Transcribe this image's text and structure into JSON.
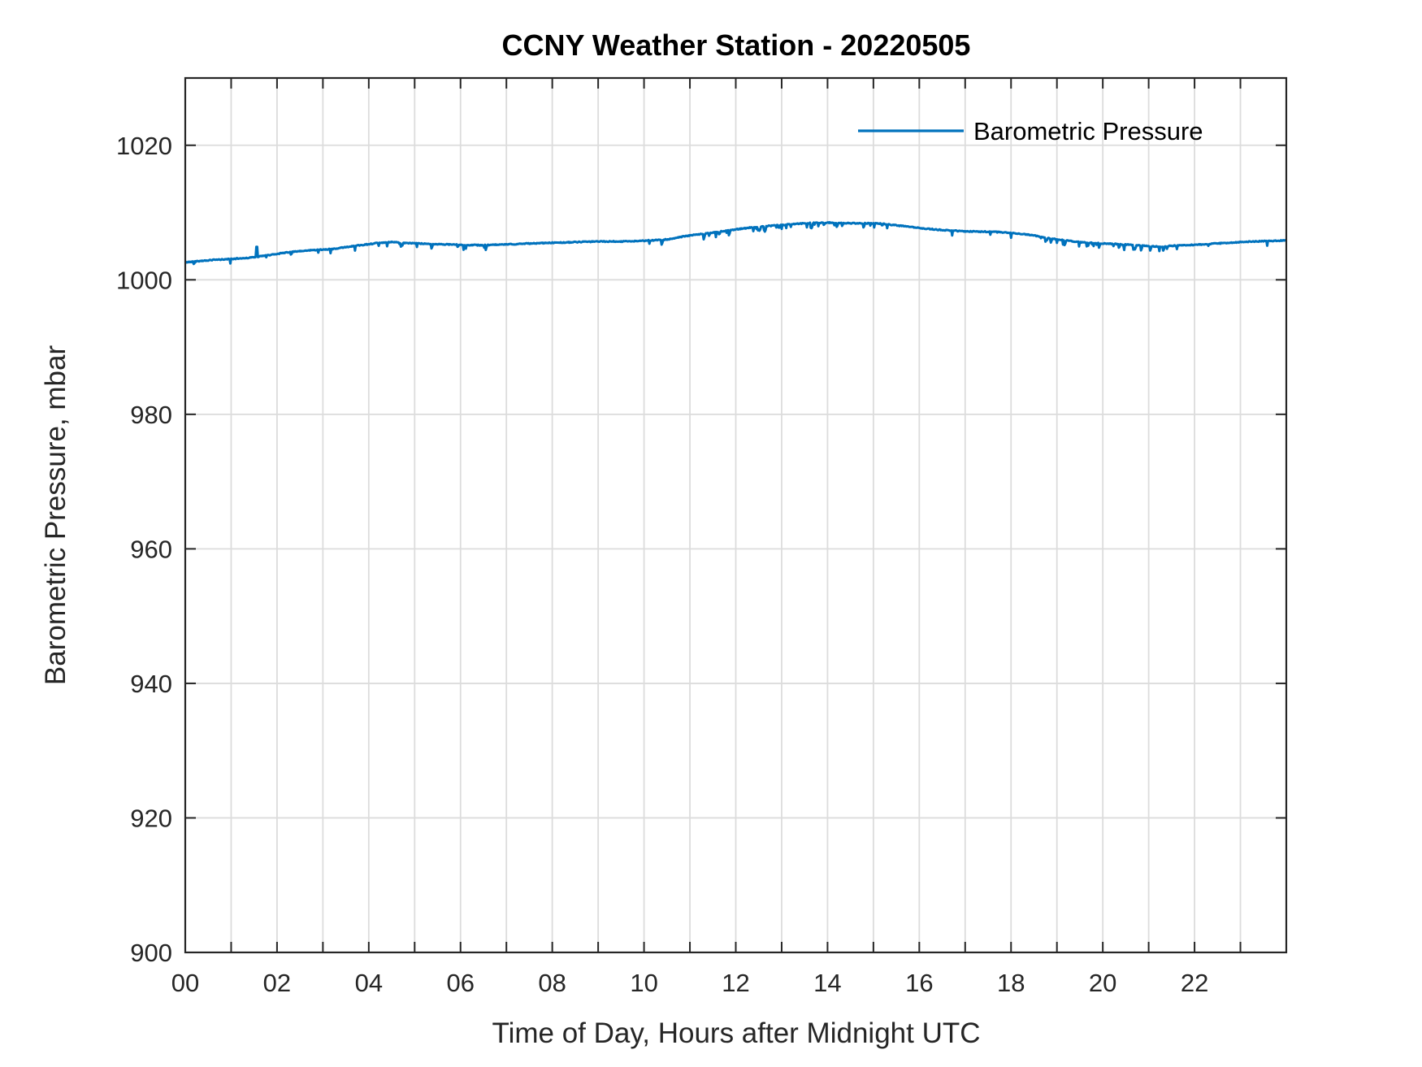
{
  "window": {
    "background": "#ffffff"
  },
  "chart_data": {
    "type": "line",
    "title": "CCNY Weather Station - 20220505",
    "xlabel": "Time of Day, Hours after Midnight UTC",
    "ylabel": "Barometric Pressure, mbar",
    "xlim": [
      0,
      24
    ],
    "ylim": [
      900,
      1030
    ],
    "x_minor_tick_step_hours": 1,
    "grid": {
      "vertical_every_hours": 1,
      "horizontal_every_mbar": 20,
      "color": "#dcdcdc",
      "on": true
    },
    "axis_color": "#262626",
    "xticks": [
      {
        "value": 0,
        "label": "00"
      },
      {
        "value": 2,
        "label": "02"
      },
      {
        "value": 4,
        "label": "04"
      },
      {
        "value": 6,
        "label": "06"
      },
      {
        "value": 8,
        "label": "08"
      },
      {
        "value": 10,
        "label": "10"
      },
      {
        "value": 12,
        "label": "12"
      },
      {
        "value": 14,
        "label": "14"
      },
      {
        "value": 16,
        "label": "16"
      },
      {
        "value": 18,
        "label": "18"
      },
      {
        "value": 20,
        "label": "20"
      },
      {
        "value": 22,
        "label": "22"
      }
    ],
    "yticks": [
      {
        "value": 900,
        "label": "900"
      },
      {
        "value": 920,
        "label": "920"
      },
      {
        "value": 940,
        "label": "940"
      },
      {
        "value": 960,
        "label": "960"
      },
      {
        "value": 980,
        "label": "980"
      },
      {
        "value": 1000,
        "label": "1000"
      },
      {
        "value": 1020,
        "label": "1020"
      }
    ],
    "legend": {
      "position": "top-right-inside",
      "border": "none",
      "entries": [
        {
          "label": "Barometric Pressure",
          "color": "#0072BD"
        }
      ]
    },
    "series": [
      {
        "name": "Barometric Pressure",
        "color": "#0072BD",
        "line_width": 3,
        "units": "mbar",
        "sample_interval_hours": 0.0166667,
        "points": [
          [
            0,
            1002.6
          ],
          [
            0.25,
            1002.75
          ],
          [
            0.5,
            1002.9
          ],
          [
            0.75,
            1003.0
          ],
          [
            1,
            1003.1
          ],
          [
            1.25,
            1003.2
          ],
          [
            1.5,
            1003.35
          ],
          [
            1.75,
            1003.6
          ],
          [
            2,
            1003.85
          ],
          [
            2.25,
            1004.1
          ],
          [
            2.5,
            1004.25
          ],
          [
            2.75,
            1004.4
          ],
          [
            3,
            1004.5
          ],
          [
            3.25,
            1004.6
          ],
          [
            3.5,
            1004.85
          ],
          [
            3.75,
            1005.1
          ],
          [
            4,
            1005.3
          ],
          [
            4.25,
            1005.5
          ],
          [
            4.5,
            1005.6
          ],
          [
            4.75,
            1005.5
          ],
          [
            5,
            1005.4
          ],
          [
            5.5,
            1005.3
          ],
          [
            6,
            1005.2
          ],
          [
            6.5,
            1005.15
          ],
          [
            7,
            1005.25
          ],
          [
            7.5,
            1005.4
          ],
          [
            8,
            1005.5
          ],
          [
            8.5,
            1005.6
          ],
          [
            9,
            1005.7
          ],
          [
            9.5,
            1005.7
          ],
          [
            10,
            1005.8
          ],
          [
            10.5,
            1006.0
          ],
          [
            10.75,
            1006.3
          ],
          [
            11,
            1006.6
          ],
          [
            11.5,
            1007.0
          ],
          [
            12,
            1007.5
          ],
          [
            12.5,
            1007.9
          ],
          [
            13,
            1008.15
          ],
          [
            13.5,
            1008.4
          ],
          [
            14,
            1008.5
          ],
          [
            14.5,
            1008.4
          ],
          [
            15,
            1008.4
          ],
          [
            15.25,
            1008.3
          ],
          [
            15.5,
            1008.1
          ],
          [
            16,
            1007.7
          ],
          [
            16.5,
            1007.4
          ],
          [
            17,
            1007.2
          ],
          [
            17.5,
            1007.15
          ],
          [
            18,
            1007.0
          ],
          [
            18.25,
            1006.8
          ],
          [
            18.5,
            1006.6
          ],
          [
            18.75,
            1006.3
          ],
          [
            19,
            1006.0
          ],
          [
            19.5,
            1005.6
          ],
          [
            20,
            1005.4
          ],
          [
            20.5,
            1005.25
          ],
          [
            21,
            1005.0
          ],
          [
            21.25,
            1004.9
          ],
          [
            21.5,
            1005.05
          ],
          [
            22,
            1005.2
          ],
          [
            22.5,
            1005.4
          ],
          [
            23,
            1005.6
          ],
          [
            23.5,
            1005.75
          ],
          [
            24,
            1005.85
          ]
        ],
        "anomaly_spike": {
          "hour": 1.56,
          "value": 1004.9
        },
        "noise": {
          "base_jitter_mbar": 0.07,
          "downward_spike_depth_mbar": [
            0.2,
            0.8
          ],
          "base_spike_probability": 0.035,
          "enhanced_spike_probability": 0.13,
          "enhanced_windows_hours": [
            [
              5.2,
              6.6
            ],
            [
              11.0,
              14.4
            ],
            [
              18.6,
              21.7
            ]
          ]
        }
      }
    ]
  }
}
